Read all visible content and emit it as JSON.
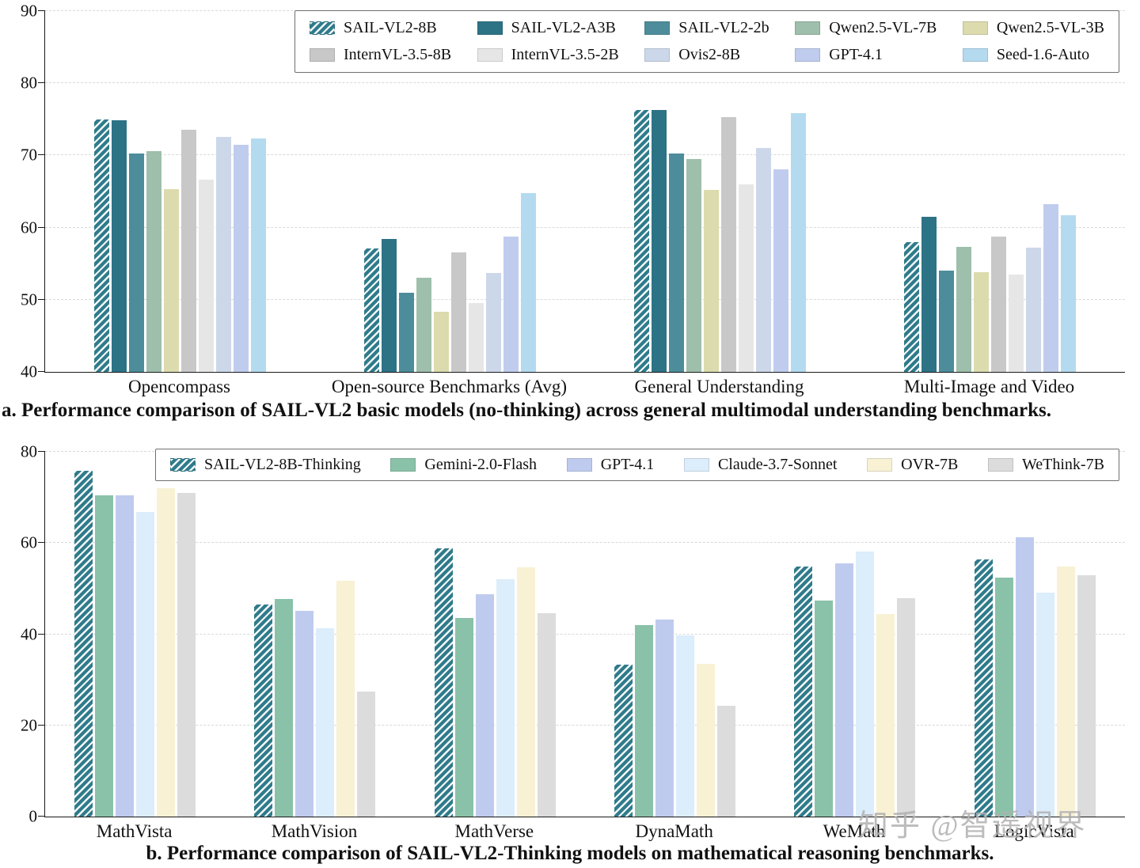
{
  "watermark": "知乎 @智遥视界",
  "charts": [
    {
      "type": "bar",
      "caption": "a. Performance comparison of SAIL-VL2 basic models (no-thinking) across general multimodal understanding benchmarks.",
      "ylim": [
        40,
        90
      ],
      "yticks": [
        40,
        50,
        60,
        70,
        80,
        90
      ],
      "grid": "dashed-horizontal",
      "legend_position": "top",
      "categories": [
        "Opencompass",
        "Open-source Benchmarks (Avg)",
        "General Understanding",
        "Multi-Image and Video"
      ],
      "series": [
        {
          "name": "SAIL-VL2-8B",
          "color": "#2f7b8b",
          "hatch": true,
          "values": [
            75.0,
            57.1,
            76.3,
            58.0
          ]
        },
        {
          "name": "SAIL-VL2-A3B",
          "color": "#2d7386",
          "hatch": false,
          "values": [
            74.9,
            58.4,
            76.3,
            61.5
          ]
        },
        {
          "name": "SAIL-VL2-2b",
          "color": "#4d8d9b",
          "hatch": false,
          "values": [
            70.3,
            51.0,
            70.3,
            54.0
          ]
        },
        {
          "name": "Qwen2.5-VL-7B",
          "color": "#9dbfab",
          "hatch": false,
          "values": [
            70.6,
            53.1,
            69.5,
            57.3
          ]
        },
        {
          "name": "Qwen2.5-VL-3B",
          "color": "#dcdbae",
          "hatch": false,
          "values": [
            65.3,
            48.3,
            65.2,
            53.8
          ]
        },
        {
          "name": "InternVL-3.5-8B",
          "color": "#c8c8c8",
          "hatch": false,
          "values": [
            73.5,
            56.6,
            75.3,
            58.7
          ]
        },
        {
          "name": "InternVL-3.5-2B",
          "color": "#e6e6e6",
          "hatch": false,
          "values": [
            66.6,
            49.5,
            66.0,
            53.5
          ]
        },
        {
          "name": "Ovis2-8B",
          "color": "#ccd8ea",
          "hatch": false,
          "values": [
            72.6,
            53.7,
            71.0,
            57.2
          ]
        },
        {
          "name": "GPT-4.1",
          "color": "#c0ccee",
          "hatch": false,
          "values": [
            71.5,
            58.7,
            68.1,
            63.2
          ]
        },
        {
          "name": "Seed-1.6-Auto",
          "color": "#b4daf0",
          "hatch": false,
          "values": [
            72.4,
            64.8,
            75.9,
            61.7
          ]
        }
      ]
    },
    {
      "type": "bar",
      "caption": "b. Performance comparison of SAIL-VL2-Thinking models on mathematical reasoning benchmarks.",
      "ylim": [
        0,
        80
      ],
      "yticks": [
        0,
        20,
        40,
        60,
        80
      ],
      "grid": "dashed-horizontal",
      "legend_position": "top",
      "categories": [
        "MathVista",
        "MathVision",
        "MathVerse",
        "DynaMath",
        "WeMath",
        "LogicVista"
      ],
      "series": [
        {
          "name": "SAIL-VL2-8B-Thinking",
          "color": "#2f7b8b",
          "hatch": true,
          "values": [
            75.8,
            46.5,
            58.9,
            33.4,
            54.8,
            56.4
          ]
        },
        {
          "name": "Gemini-2.0-Flash",
          "color": "#8ac2a9",
          "hatch": false,
          "values": [
            70.4,
            47.7,
            43.5,
            42.0,
            47.4,
            52.4
          ]
        },
        {
          "name": "GPT-4.1",
          "color": "#bfcbee",
          "hatch": false,
          "values": [
            70.4,
            45.1,
            48.8,
            43.2,
            55.5,
            61.2
          ]
        },
        {
          "name": "Claude-3.7-Sonnet",
          "color": "#dcedfb",
          "hatch": false,
          "values": [
            66.8,
            41.3,
            52.0,
            39.7,
            58.2,
            49.2
          ]
        },
        {
          "name": "OVR-7B",
          "color": "#f8f1d4",
          "hatch": false,
          "values": [
            72.1,
            51.8,
            54.6,
            33.5,
            44.5,
            54.8
          ]
        },
        {
          "name": "WeThink-7B",
          "color": "#dcdcdc",
          "hatch": false,
          "values": [
            71.0,
            27.4,
            44.6,
            24.3,
            47.9,
            53.0
          ]
        }
      ]
    }
  ]
}
